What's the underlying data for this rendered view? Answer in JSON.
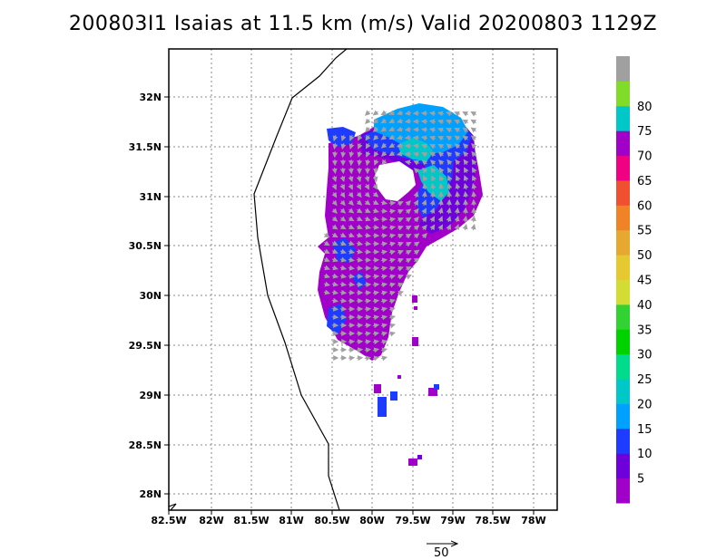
{
  "title": "200803I1 Isaias at 11.5 km (m/s) Valid 20200803 1129Z",
  "map": {
    "x_ticks": [
      "82.5W",
      "82W",
      "81.5W",
      "81W",
      "80.5W",
      "80W",
      "79.5W",
      "79W",
      "78.5W",
      "78W"
    ],
    "y_ticks": [
      "32N",
      "31.5N",
      "31N",
      "30.5N",
      "30N",
      "29.5N",
      "29N",
      "28.5N",
      "28N"
    ],
    "grid": "dotted"
  },
  "colorbar": {
    "labels": [
      "5",
      "10",
      "15",
      "20",
      "25",
      "30",
      "35",
      "40",
      "45",
      "50",
      "55",
      "60",
      "65",
      "70",
      "75",
      "80"
    ],
    "colors": [
      "#a000c8",
      "#6e00dc",
      "#1e3cff",
      "#00a0ff",
      "#00c8c8",
      "#00dc8c",
      "#00d200",
      "#32d232",
      "#d2dc32",
      "#e6c830",
      "#e6a830",
      "#f08228",
      "#f05030",
      "#f00082",
      "#a000c8",
      "#00c8c8",
      "#80dc28",
      "#a0a0a0"
    ]
  },
  "reference_vector": {
    "label": "50"
  }
}
